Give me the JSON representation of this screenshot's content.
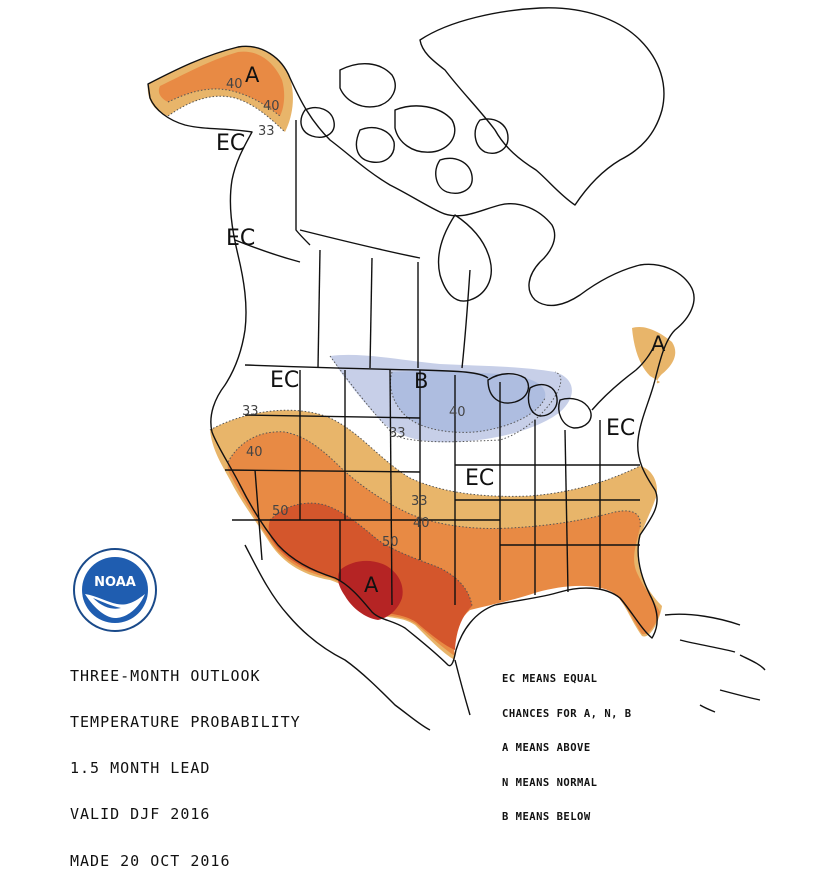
{
  "map": {
    "colors": {
      "above_33": "#e8b56a",
      "above_40": "#e88a44",
      "above_50": "#d4562c",
      "above_60": "#b52424",
      "below_33": "#c7cfe8",
      "below_40": "#aebde0",
      "boundary": "#111111"
    },
    "labels": {
      "ec_alaska": "EC",
      "a_alaska": "A",
      "iso_ak_40a": "40",
      "iso_ak_40b": "40",
      "iso_ak_33": "33",
      "ec_bc": "EC",
      "ec_west": "EC",
      "iso_w33": "33",
      "iso_w40": "40",
      "iso_w50": "50",
      "b_north": "B",
      "iso_b40": "40",
      "iso_b33": "33",
      "ec_central": "EC",
      "iso_c33": "33",
      "iso_c40": "40",
      "iso_s50": "50",
      "a_south": "A",
      "a_northeast": "A",
      "ec_east": "EC"
    }
  },
  "logo": {
    "text": "NOAA",
    "icon": "noaa-logo"
  },
  "title_lines": [
    "THREE-MONTH OUTLOOK",
    "TEMPERATURE PROBABILITY",
    "1.5 MONTH LEAD",
    "VALID DJF 2016",
    "MADE 20 OCT 2016"
  ],
  "legend_lines": [
    "EC MEANS EQUAL",
    "CHANCES FOR A, N, B",
    "A MEANS ABOVE",
    "N MEANS NORMAL",
    "B MEANS BELOW"
  ]
}
